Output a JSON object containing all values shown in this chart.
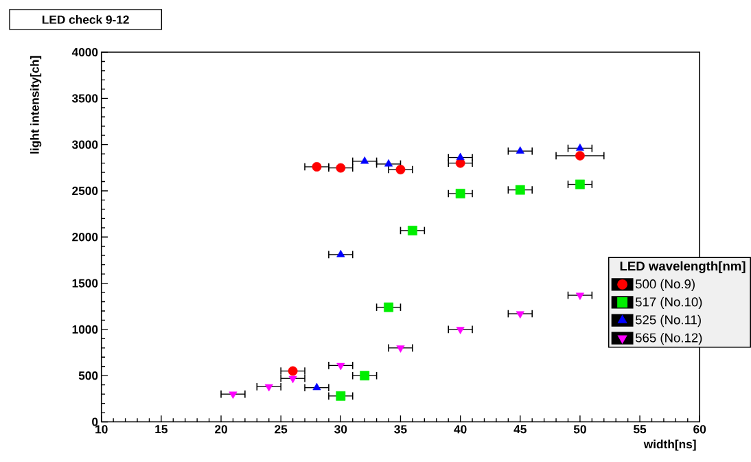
{
  "chart_data": {
    "type": "scatter",
    "title": "LED check 9-12",
    "xlabel": "width[ns]",
    "ylabel": "light intensity[ch]",
    "legend_title": "LED wavelength[nm]",
    "legend": "bottom right",
    "xlim": [
      10,
      60
    ],
    "xticks": [
      10,
      15,
      20,
      25,
      30,
      35,
      40,
      45,
      50,
      55,
      60
    ],
    "ylim": [
      0,
      4000
    ],
    "yticks": [
      0,
      500,
      1000,
      1500,
      2000,
      2500,
      3000,
      3500,
      4000
    ],
    "series": [
      {
        "name": "500 (No.9)",
        "color": "#ff0000",
        "marker": "circle",
        "x": [
          26,
          28,
          30,
          35,
          40,
          50
        ],
        "values": [
          550,
          2760,
          2748,
          2730,
          2800,
          2880
        ],
        "xerrors": [
          1,
          1,
          1,
          1,
          1,
          2
        ]
      },
      {
        "name": "517 (No.10)",
        "color": "#00ee00",
        "marker": "square",
        "x": [
          30,
          32,
          34,
          36,
          40,
          45,
          50
        ],
        "values": [
          280,
          500,
          1240,
          2070,
          2470,
          2510,
          2570
        ],
        "xerrors": [
          1,
          1,
          1,
          1,
          1,
          1,
          1
        ]
      },
      {
        "name": "525 (No.11)",
        "color": "#0000ff",
        "marker": "triangle",
        "x": [
          28,
          30,
          32,
          34,
          40,
          45,
          50
        ],
        "values": [
          370,
          1810,
          2820,
          2790,
          2860,
          2930,
          2960
        ],
        "xerrors": [
          1,
          1,
          1,
          1,
          1,
          1,
          1
        ]
      },
      {
        "name": "565 (No.12)",
        "color": "#ff00ff",
        "marker": "triangle-down",
        "x": [
          21,
          24,
          26,
          30,
          35,
          40,
          45,
          50
        ],
        "values": [
          300,
          380,
          470,
          610,
          800,
          1000,
          1170,
          1370
        ],
        "xerrors": [
          1,
          1,
          1,
          1,
          1,
          1,
          1,
          1
        ]
      }
    ]
  }
}
